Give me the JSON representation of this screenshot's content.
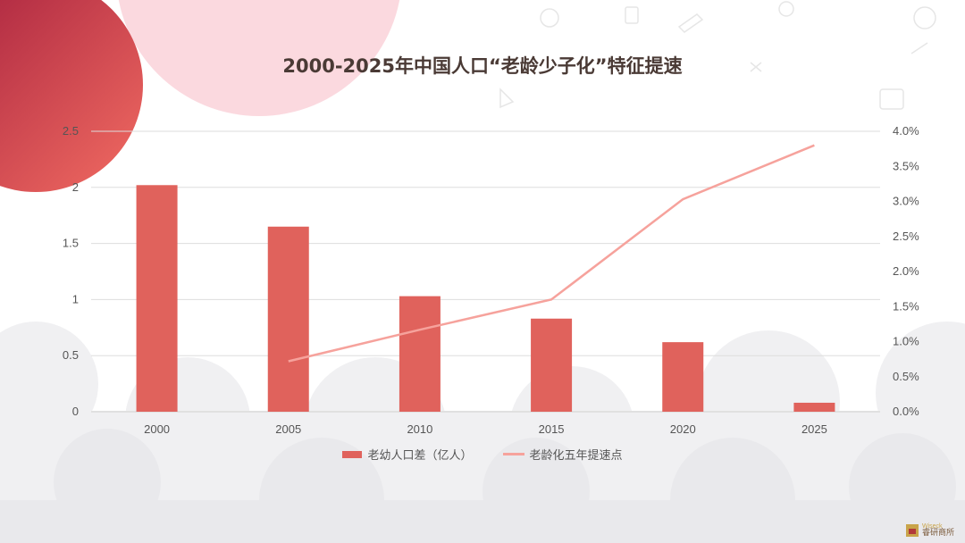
{
  "slide": {
    "title": "2000-2025年中国人口“老龄少子化”特征提速"
  },
  "colors": {
    "bar": "#e0625c",
    "line": "#f6a29c",
    "grid": "#dddddd",
    "title": "#4a3a35",
    "deco_pink": "#fbd9df",
    "deco_red": "#e5555a"
  },
  "chart_data": {
    "type": "bar",
    "title": "2000-2025年中国人口“老龄少子化”特征提速",
    "categories": [
      "2000",
      "2005",
      "2010",
      "2015",
      "2020",
      "2025"
    ],
    "series": [
      {
        "name": "老幼人口差（亿人）",
        "type": "bar",
        "axis": "left",
        "values": [
          2.02,
          1.65,
          1.03,
          0.83,
          0.62,
          0.08
        ]
      },
      {
        "name": "老龄化五年提速点",
        "type": "line",
        "axis": "right",
        "values": [
          null,
          0.72,
          1.17,
          1.6,
          3.03,
          3.8
        ]
      }
    ],
    "y_left": {
      "min": 0,
      "max": 2.5,
      "ticks": [
        "0",
        "0.5",
        "1",
        "1.5",
        "2",
        "2.5"
      ]
    },
    "y_right": {
      "min": 0,
      "max": 4.0,
      "ticks": [
        "0.0%",
        "0.5%",
        "1.0%",
        "1.5%",
        "2.0%",
        "2.5%",
        "3.0%",
        "3.5%",
        "4.0%"
      ]
    },
    "grid": true,
    "legend": "bottom-center"
  },
  "logo": {
    "top_text": "Wiseck",
    "bottom_text": "睿研商所"
  }
}
